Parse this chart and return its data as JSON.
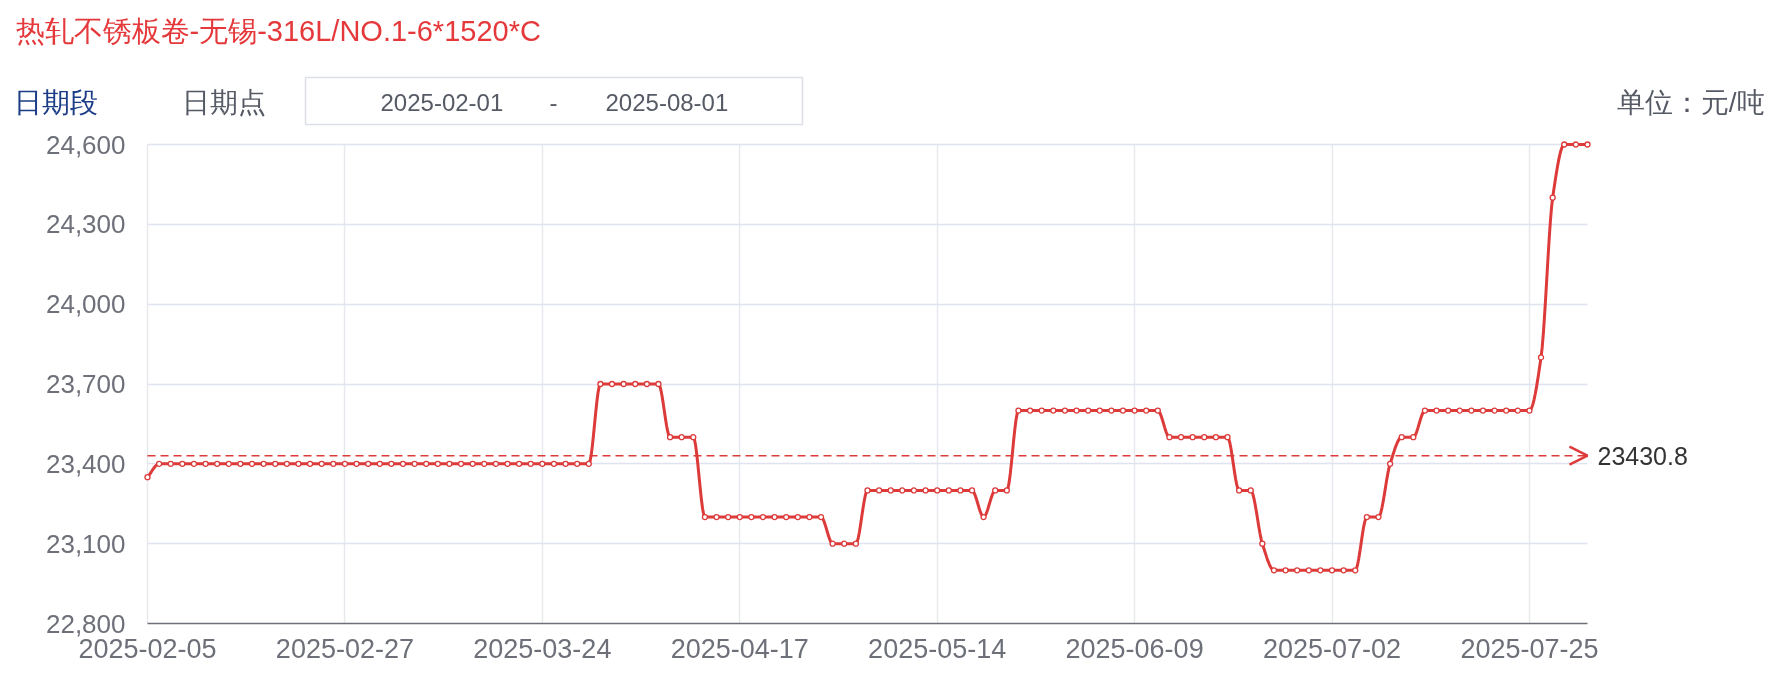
{
  "chart_data": {
    "type": "line",
    "title": "热轧不锈板卷-无锡-316L/NO.1-6*1520*C",
    "annotations": [
      "日期段",
      "日期点",
      "2025-02-01",
      "-",
      "2025-08-01",
      "单位：元/吨"
    ],
    "categories": [
      "2025-02-05",
      null,
      null,
      null,
      null,
      null,
      null,
      null,
      null,
      null,
      null,
      null,
      null,
      null,
      null,
      null,
      null,
      "2025-02-27",
      null,
      null,
      null,
      null,
      null,
      null,
      null,
      null,
      null,
      null,
      null,
      null,
      null,
      null,
      null,
      null,
      "2025-03-24",
      null,
      null,
      null,
      null,
      null,
      null,
      null,
      null,
      null,
      null,
      null,
      null,
      null,
      null,
      null,
      null,
      "2025-04-17",
      null,
      null,
      null,
      null,
      null,
      null,
      null,
      null,
      null,
      null,
      null,
      null,
      null,
      null,
      null,
      null,
      "2025-05-14",
      null,
      null,
      null,
      null,
      null,
      null,
      null,
      null,
      null,
      null,
      null,
      null,
      null,
      null,
      null,
      null,
      "2025-06-09",
      null,
      null,
      null,
      null,
      null,
      null,
      null,
      null,
      null,
      null,
      null,
      null,
      null,
      null,
      null,
      null,
      "2025-07-02",
      null,
      null,
      null,
      null,
      null,
      null,
      null,
      null,
      null,
      null,
      null,
      null,
      null,
      null,
      null,
      null,
      "2025-07-25",
      null,
      null,
      null,
      null,
      null
    ],
    "series": [
      {
        "color": "#dd3a3a",
        "values": [
          23350,
          23400,
          23400,
          23400,
          23400,
          23400,
          23400,
          23400,
          23400,
          23400,
          23400,
          23400,
          23400,
          23400,
          23400,
          23400,
          23400,
          23400,
          23400,
          23400,
          23400,
          23400,
          23400,
          23400,
          23400,
          23400,
          23400,
          23400,
          23400,
          23400,
          23400,
          23400,
          23400,
          23400,
          23400,
          23400,
          23400,
          23400,
          23400,
          23700,
          23700,
          23700,
          23700,
          23700,
          23700,
          23500,
          23500,
          23500,
          23200,
          23200,
          23200,
          23200,
          23200,
          23200,
          23200,
          23200,
          23200,
          23200,
          23200,
          23100,
          23100,
          23100,
          23300,
          23300,
          23300,
          23300,
          23300,
          23300,
          23300,
          23300,
          23300,
          23300,
          23200,
          23300,
          23300,
          23600,
          23600,
          23600,
          23600,
          23600,
          23600,
          23600,
          23600,
          23600,
          23600,
          23600,
          23600,
          23600,
          23500,
          23500,
          23500,
          23500,
          23500,
          23500,
          23300,
          23300,
          23100,
          23000,
          23000,
          23000,
          23000,
          23000,
          23000,
          23000,
          23000,
          23200,
          23200,
          23400,
          23500,
          23500,
          23600,
          23600,
          23600,
          23600,
          23600,
          23600,
          23600,
          23600,
          23600,
          23600,
          23800,
          24400,
          24600,
          24600,
          24600
        ]
      }
    ],
    "ylim": [
      22800,
      24600
    ],
    "yticks": [
      {
        "value": 22800,
        "label": "22,800"
      },
      {
        "value": 23100,
        "label": "23,100"
      },
      {
        "value": 23400,
        "label": "23,400"
      },
      {
        "value": 23700,
        "label": "23,700"
      },
      {
        "value": 24000,
        "label": "24,000"
      },
      {
        "value": 24300,
        "label": "24,300"
      },
      {
        "value": 24600,
        "label": "24,600"
      }
    ],
    "ref_lines": [
      {
        "axis": "y",
        "value": 23430.8,
        "label": "23430.8",
        "color": "#dd3a3a",
        "line_style": "dashed"
      }
    ],
    "grid": true,
    "marker": "circle",
    "line_style": "solid"
  }
}
